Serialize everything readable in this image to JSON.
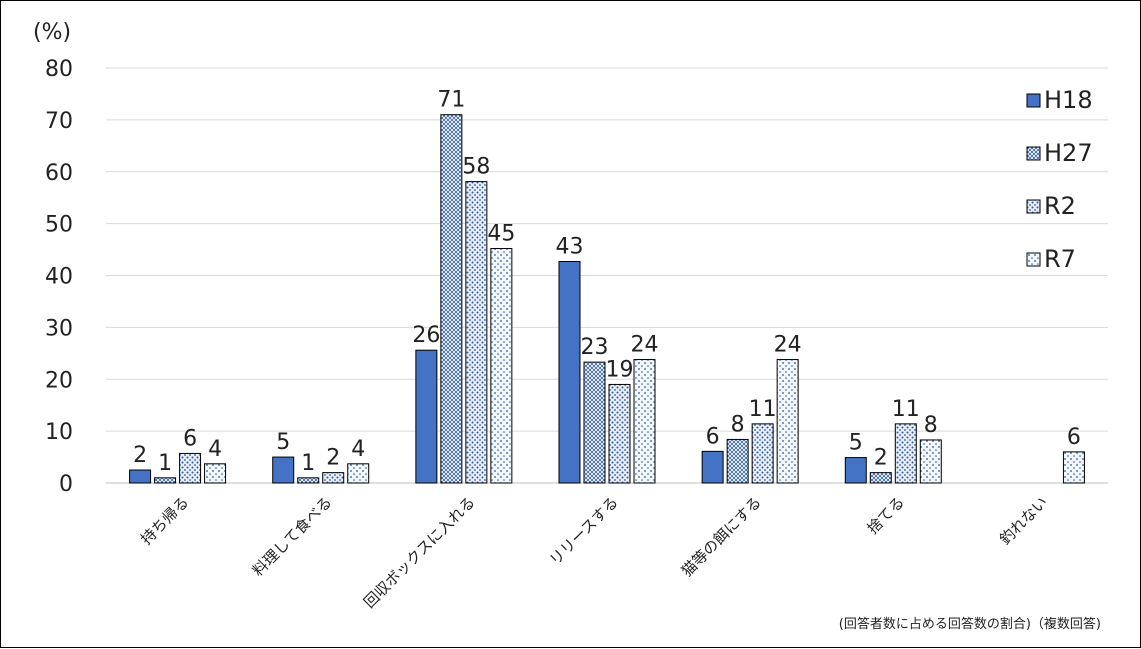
{
  "chart_data": {
    "type": "bar",
    "unit_label": "(%)",
    "note": "(回答者数に占める回答数の割合)（複数回答)",
    "categories": [
      "持ち帰る",
      "料理して食べる",
      "回収ボックスに入れる",
      "リリースする",
      "猫等の餌にする",
      "捨てる",
      "釣れない"
    ],
    "ylim": [
      0,
      80
    ],
    "yticks": [
      0,
      10,
      20,
      30,
      40,
      50,
      60,
      70,
      80
    ],
    "grid": true,
    "legend_position": "right",
    "series": [
      {
        "name": "H18",
        "values": [
          2.5,
          5,
          25.6,
          42.7,
          6.1,
          4.9,
          null
        ],
        "labels": [
          "2",
          "5",
          "26",
          "43",
          "6",
          "5",
          ""
        ],
        "color": "#4472c4",
        "pattern": "solid"
      },
      {
        "name": "H27",
        "values": [
          1,
          1,
          71,
          23.3,
          8.4,
          2,
          null
        ],
        "labels": [
          "1",
          "1",
          "71",
          "23",
          "8",
          "2",
          ""
        ],
        "color": "#9dc3e6",
        "pattern": "dense"
      },
      {
        "name": "R2",
        "values": [
          5.7,
          2,
          58.1,
          19,
          11.4,
          11.4,
          null
        ],
        "labels": [
          "6",
          "2",
          "58",
          "19",
          "11",
          "11",
          ""
        ],
        "color": "#bdd7ee",
        "pattern": "medium"
      },
      {
        "name": "R7",
        "values": [
          3.7,
          3.7,
          45.2,
          23.8,
          23.8,
          8.3,
          6
        ],
        "labels": [
          "4",
          "4",
          "45",
          "24",
          "24",
          "8",
          "6"
        ],
        "color": "#deebf7",
        "pattern": "sparse"
      }
    ]
  }
}
